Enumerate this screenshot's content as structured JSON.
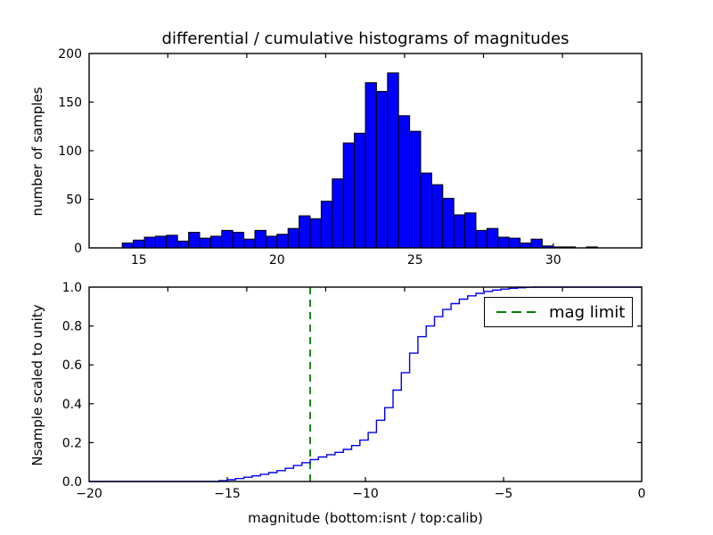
{
  "figure": {
    "title": "differential / cumulative histograms of magnitudes",
    "xlabel": "magnitude (bottom:isnt / top:calib)",
    "background": "#ffffff",
    "colors": {
      "axis": "#000000",
      "hist_fill": "#0000ff",
      "hist_edge": "#000000",
      "cumulative_line": "#0000ee",
      "mag_limit_line": "#008000"
    },
    "legend": {
      "label": "mag limit",
      "line_color": "#008000",
      "line_style": "dashed",
      "position": "upper right"
    }
  },
  "chart_data": [
    {
      "type": "bar",
      "subplot": "top",
      "title": "differential / cumulative histograms of magnitudes",
      "ylabel": "number of samples",
      "xlim": [
        13.2,
        33.2
      ],
      "ylim": [
        0,
        200
      ],
      "xticks": [
        15,
        20,
        25,
        30
      ],
      "xtick_labels": [
        "15",
        "20",
        "25",
        "30"
      ],
      "yticks": [
        0,
        50,
        100,
        150,
        200
      ],
      "ytick_labels": [
        "0",
        "50",
        "100",
        "150",
        "200"
      ],
      "bin_start": 14.4,
      "bin_width": 0.4,
      "counts": [
        5,
        8,
        11,
        12,
        13,
        7,
        16,
        10,
        12,
        18,
        16,
        9,
        18,
        12,
        14,
        20,
        33,
        30,
        48,
        71,
        108,
        118,
        170,
        161,
        180,
        136,
        120,
        77,
        65,
        51,
        34,
        36,
        18,
        20,
        11,
        10,
        5,
        9,
        2,
        1,
        1,
        0,
        1
      ],
      "bar_color": "#0000ff",
      "bar_edge_color": "#000000",
      "grid": false
    },
    {
      "type": "line",
      "subplot": "bottom",
      "style": "step-post",
      "ylabel": "Nsample scaled to unity",
      "xlabel": "magnitude (bottom:isnt / top:calib)",
      "xlim": [
        -20,
        0
      ],
      "ylim": [
        0,
        1
      ],
      "xticks": [
        -20,
        -15,
        -10,
        -5,
        0
      ],
      "xtick_labels": [
        "−20",
        "−15",
        "−10",
        "−5",
        "0"
      ],
      "yticks": [
        0.0,
        0.2,
        0.4,
        0.6,
        0.8,
        1.0
      ],
      "ytick_labels": [
        "0.0",
        "0.2",
        "0.4",
        "0.6",
        "0.8",
        "1.0"
      ],
      "line_color": "#0000ee",
      "points": [
        [
          -20,
          0
        ],
        [
          -15.3,
          0.004
        ],
        [
          -15.0,
          0.009
        ],
        [
          -14.7,
          0.015
        ],
        [
          -14.4,
          0.022
        ],
        [
          -14.1,
          0.029
        ],
        [
          -13.8,
          0.037
        ],
        [
          -13.5,
          0.046
        ],
        [
          -13.2,
          0.056
        ],
        [
          -12.9,
          0.068
        ],
        [
          -12.6,
          0.082
        ],
        [
          -12.3,
          0.097
        ],
        [
          -12.0,
          0.113
        ],
        [
          -11.7,
          0.126
        ],
        [
          -11.4,
          0.138
        ],
        [
          -11.1,
          0.15
        ],
        [
          -10.8,
          0.165
        ],
        [
          -10.5,
          0.185
        ],
        [
          -10.2,
          0.213
        ],
        [
          -9.9,
          0.252
        ],
        [
          -9.6,
          0.315
        ],
        [
          -9.3,
          0.38
        ],
        [
          -9.0,
          0.47
        ],
        [
          -8.7,
          0.56
        ],
        [
          -8.4,
          0.66
        ],
        [
          -8.1,
          0.745
        ],
        [
          -7.8,
          0.8
        ],
        [
          -7.5,
          0.848
        ],
        [
          -7.2,
          0.885
        ],
        [
          -6.9,
          0.915
        ],
        [
          -6.6,
          0.938
        ],
        [
          -6.3,
          0.955
        ],
        [
          -6.0,
          0.968
        ],
        [
          -5.7,
          0.978
        ],
        [
          -5.4,
          0.985
        ],
        [
          -5.1,
          0.99
        ],
        [
          -4.8,
          0.994
        ],
        [
          -4.5,
          0.997
        ],
        [
          -4.2,
          0.999
        ],
        [
          -3.9,
          1.0
        ],
        [
          0,
          1.0
        ]
      ],
      "vline": {
        "x": -12,
        "color": "#008000",
        "style": "dashed",
        "label": "mag limit"
      },
      "legend": {
        "label": "mag limit",
        "position": "upper right"
      },
      "grid": false
    }
  ]
}
